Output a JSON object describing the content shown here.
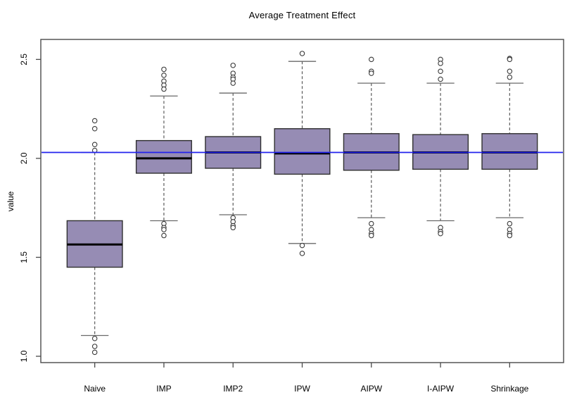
{
  "chart_data": {
    "type": "boxplot",
    "title": "Average Treatment Effect",
    "xlabel": "",
    "ylabel": "value",
    "categories": [
      "Naive",
      "IMP",
      "IMP2",
      "IPW",
      "AIPW",
      "I-AIPW",
      "Shrinkage"
    ],
    "yticks": {
      "values": [
        1.0,
        1.5,
        2.0,
        2.5
      ],
      "labels": [
        "1.0",
        "1.5",
        "2.0",
        "2.5"
      ]
    },
    "ylim": [
      0.968,
      2.601
    ],
    "xlim": [
      0.22,
      7.78
    ],
    "grid": false,
    "legend": "none",
    "reference_line": {
      "orientation": "horizontal",
      "value": 2.03,
      "color": "#2222EE"
    },
    "boxes": [
      {
        "label": "Naive",
        "whisker_low": 1.105,
        "q1": 1.45,
        "median": 1.565,
        "q3": 1.685,
        "whisker_high": 2.03,
        "outliers": [
          2.19,
          2.15,
          2.07,
          2.04,
          1.09,
          1.05,
          1.02
        ]
      },
      {
        "label": "IMP",
        "whisker_low": 1.685,
        "q1": 1.925,
        "median": 2.0,
        "q3": 2.09,
        "whisker_high": 2.315,
        "outliers": [
          2.45,
          2.42,
          2.39,
          2.37,
          2.35,
          1.67,
          1.65,
          1.64,
          1.61
        ]
      },
      {
        "label": "IMP2",
        "whisker_low": 1.715,
        "q1": 1.95,
        "median": 2.03,
        "q3": 2.11,
        "whisker_high": 2.33,
        "outliers": [
          2.47,
          2.43,
          2.41,
          2.4,
          2.38,
          1.7,
          1.68,
          1.66,
          1.65
        ]
      },
      {
        "label": "IPW",
        "whisker_low": 1.57,
        "q1": 1.92,
        "median": 2.025,
        "q3": 2.15,
        "whisker_high": 2.49,
        "outliers": [
          2.53,
          1.56,
          1.52
        ]
      },
      {
        "label": "AIPW",
        "whisker_low": 1.7,
        "q1": 1.94,
        "median": 2.03,
        "q3": 2.125,
        "whisker_high": 2.38,
        "outliers": [
          2.5,
          2.44,
          2.43,
          1.67,
          1.64,
          1.62,
          1.61
        ]
      },
      {
        "label": "I-AIPW",
        "whisker_low": 1.685,
        "q1": 1.945,
        "median": 2.03,
        "q3": 2.12,
        "whisker_high": 2.38,
        "outliers": [
          2.5,
          2.48,
          2.44,
          2.4,
          1.65,
          1.63,
          1.62
        ]
      },
      {
        "label": "Shrinkage",
        "whisker_low": 1.7,
        "q1": 1.945,
        "median": 2.03,
        "q3": 2.125,
        "whisker_high": 2.38,
        "outliers": [
          2.505,
          2.5,
          2.44,
          2.41,
          1.67,
          1.64,
          1.62,
          1.61
        ]
      }
    ],
    "colors": {
      "box_fill": "#968CB4",
      "box_border": "#303030",
      "median": "#000000",
      "whisker": "#5A5A5A",
      "cap": "#6A6A6A",
      "frame": "#4A4A4A",
      "outlier": "#3A3A3A",
      "text": "#000000"
    }
  }
}
